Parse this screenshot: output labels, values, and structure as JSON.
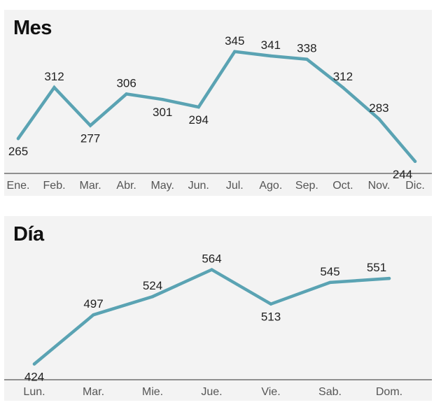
{
  "chart_data": [
    {
      "type": "line",
      "title": "Mes",
      "xlabel": "",
      "ylabel": "",
      "grid": false,
      "legend": "none",
      "color": "#5aa3b3",
      "categories": [
        "Ene.",
        "Feb.",
        "Mar.",
        "Abr.",
        "May.",
        "Jun.",
        "Jul.",
        "Ago.",
        "Sep.",
        "Oct.",
        "Nov.",
        "Dic."
      ],
      "values": [
        265,
        312,
        277,
        306,
        301,
        294,
        345,
        341,
        338,
        312,
        283,
        244
      ],
      "label_positions": [
        "below",
        "above",
        "below",
        "above",
        "below",
        "below",
        "above",
        "above",
        "above",
        "above",
        "above",
        "below"
      ],
      "ylim": [
        240,
        350
      ]
    },
    {
      "type": "line",
      "title": "Día",
      "xlabel": "",
      "ylabel": "",
      "grid": false,
      "legend": "none",
      "color": "#5aa3b3",
      "categories": [
        "Lun.",
        "Mar.",
        "Mie.",
        "Jue.",
        "Vie.",
        "Sab.",
        "Dom."
      ],
      "values": [
        424,
        497,
        524,
        564,
        513,
        545,
        551
      ],
      "label_positions": [
        "below",
        "above",
        "above",
        "above",
        "below",
        "above",
        "above"
      ],
      "ylim": [
        410,
        575
      ]
    }
  ]
}
